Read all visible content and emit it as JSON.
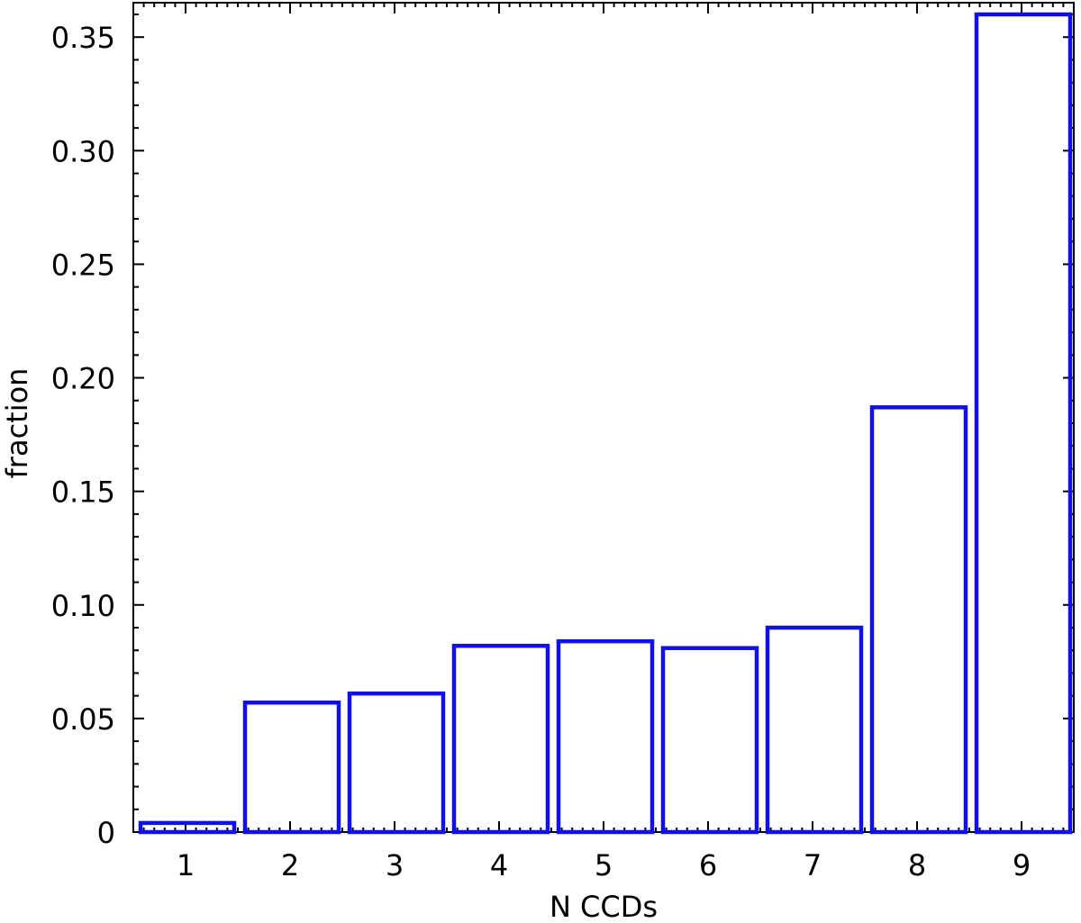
{
  "chart_data": {
    "type": "bar",
    "title": "",
    "xlabel": "N CCDs",
    "ylabel": "fraction",
    "categories": [
      "1",
      "2",
      "3",
      "4",
      "5",
      "6",
      "7",
      "8",
      "9"
    ],
    "values": [
      0.004,
      0.057,
      0.061,
      0.082,
      0.084,
      0.081,
      0.09,
      0.187,
      0.36
    ],
    "ylim": [
      0,
      0.36
    ],
    "xlim": [
      0.5,
      9.5
    ],
    "yticks": [
      "0",
      "0.05",
      "0.10",
      "0.15",
      "0.20",
      "0.25",
      "0.30",
      "0.35"
    ],
    "ytick_values": [
      0,
      0.05,
      0.1,
      0.15,
      0.2,
      0.25,
      0.3,
      0.35
    ],
    "bar_fill": "none",
    "bar_edge_color": "#1010e6",
    "grid": false,
    "legend": "none"
  }
}
